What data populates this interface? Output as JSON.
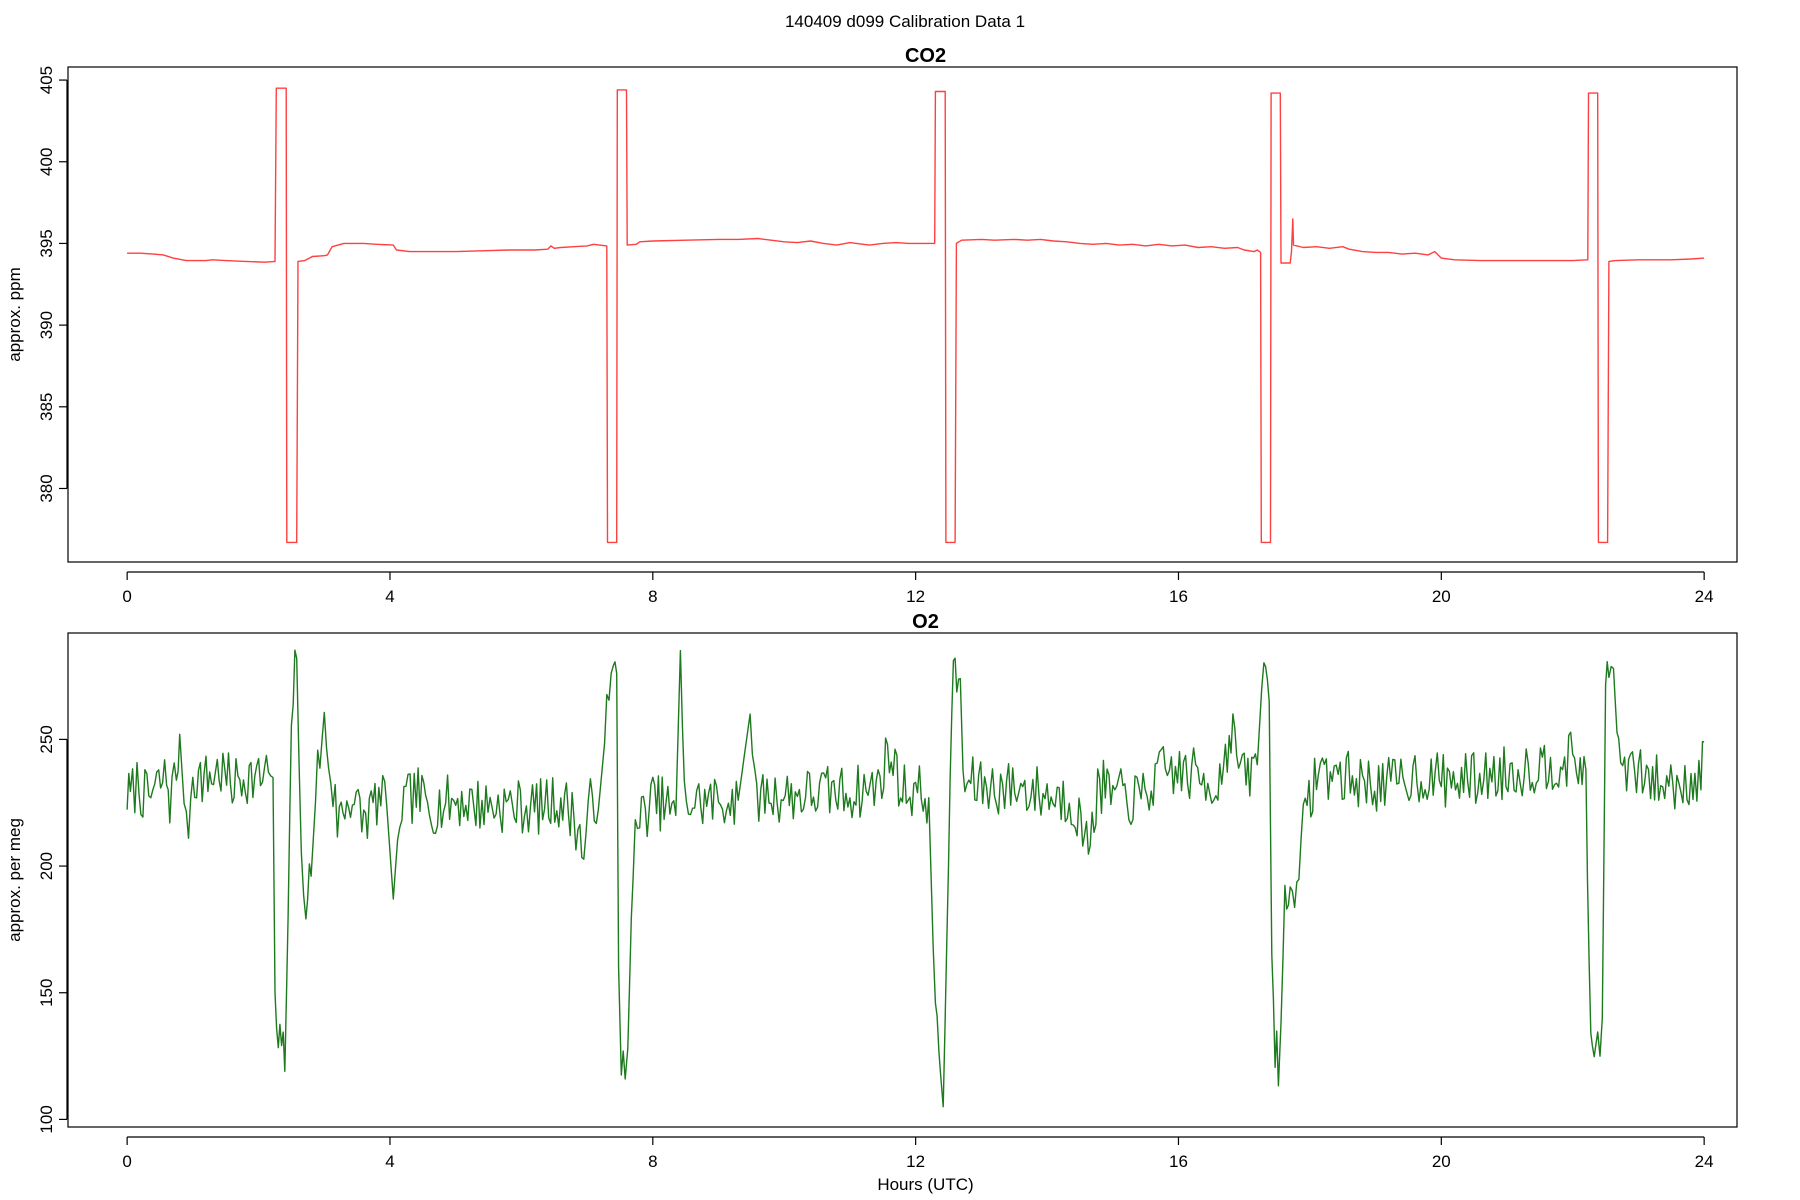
{
  "figure_title": "140409   d099   Calibration Data 1",
  "colors": {
    "co2": "#ff4040",
    "o2": "#1e7a1e",
    "axis": "#000000"
  },
  "chart_data": [
    {
      "type": "line",
      "title": "CO2",
      "xlabel": "",
      "ylabel": "approx. ppm",
      "xlim": [
        -0.9,
        24.5
      ],
      "ylim": [
        375.5,
        405.8
      ],
      "xticks": [
        0,
        4,
        8,
        12,
        16,
        20,
        24
      ],
      "yticks": [
        380,
        385,
        390,
        395,
        400,
        405
      ],
      "grid": false,
      "series": [
        {
          "color": "#ff4040",
          "step": true,
          "points": [
            [
              0.0,
              394.4
            ],
            [
              0.2,
              394.4
            ],
            [
              0.4,
              394.35
            ],
            [
              0.55,
              394.3
            ],
            [
              0.7,
              394.1
            ],
            [
              0.9,
              393.95
            ],
            [
              1.2,
              393.95
            ],
            [
              1.3,
              394.0
            ],
            [
              1.5,
              393.95
            ],
            [
              1.8,
              393.9
            ],
            [
              2.1,
              393.85
            ],
            [
              2.25,
              393.9
            ],
            [
              2.27,
              404.5
            ],
            [
              2.42,
              404.5
            ],
            [
              2.43,
              376.7
            ],
            [
              2.58,
              376.7
            ],
            [
              2.6,
              393.9
            ],
            [
              2.7,
              393.95
            ],
            [
              2.82,
              394.2
            ],
            [
              3.0,
              394.25
            ],
            [
              3.05,
              394.3
            ],
            [
              3.12,
              394.8
            ],
            [
              3.3,
              395.0
            ],
            [
              3.6,
              395.0
            ],
            [
              3.8,
              394.95
            ],
            [
              4.05,
              394.9
            ],
            [
              4.1,
              394.6
            ],
            [
              4.3,
              394.5
            ],
            [
              4.6,
              394.5
            ],
            [
              5.0,
              394.5
            ],
            [
              5.4,
              394.55
            ],
            [
              5.8,
              394.6
            ],
            [
              6.2,
              394.6
            ],
            [
              6.4,
              394.65
            ],
            [
              6.45,
              394.85
            ],
            [
              6.5,
              394.7
            ],
            [
              6.6,
              394.75
            ],
            [
              6.8,
              394.8
            ],
            [
              7.0,
              394.85
            ],
            [
              7.1,
              394.95
            ],
            [
              7.3,
              394.85
            ],
            [
              7.31,
              376.7
            ],
            [
              7.45,
              376.7
            ],
            [
              7.46,
              404.4
            ],
            [
              7.6,
              404.4
            ],
            [
              7.61,
              394.9
            ],
            [
              7.75,
              394.95
            ],
            [
              7.8,
              395.1
            ],
            [
              8.0,
              395.15
            ],
            [
              8.5,
              395.2
            ],
            [
              9.0,
              395.25
            ],
            [
              9.3,
              395.25
            ],
            [
              9.6,
              395.3
            ],
            [
              9.8,
              395.2
            ],
            [
              10.0,
              395.1
            ],
            [
              10.2,
              395.05
            ],
            [
              10.4,
              395.15
            ],
            [
              10.6,
              395.0
            ],
            [
              10.8,
              394.9
            ],
            [
              11.0,
              395.05
            ],
            [
              11.2,
              394.95
            ],
            [
              11.3,
              394.9
            ],
            [
              11.5,
              395.0
            ],
            [
              11.7,
              395.05
            ],
            [
              11.9,
              395.0
            ],
            [
              12.1,
              395.0
            ],
            [
              12.29,
              395.0
            ],
            [
              12.3,
              404.3
            ],
            [
              12.45,
              404.3
            ],
            [
              12.46,
              376.7
            ],
            [
              12.6,
              376.7
            ],
            [
              12.62,
              395.0
            ],
            [
              12.7,
              395.2
            ],
            [
              13.0,
              395.25
            ],
            [
              13.2,
              395.2
            ],
            [
              13.5,
              395.25
            ],
            [
              13.7,
              395.2
            ],
            [
              13.9,
              395.25
            ],
            [
              14.1,
              395.15
            ],
            [
              14.3,
              395.1
            ],
            [
              14.5,
              395.0
            ],
            [
              14.7,
              394.95
            ],
            [
              14.9,
              395.0
            ],
            [
              15.1,
              394.9
            ],
            [
              15.3,
              394.95
            ],
            [
              15.5,
              394.85
            ],
            [
              15.7,
              394.95
            ],
            [
              15.9,
              394.85
            ],
            [
              16.1,
              394.9
            ],
            [
              16.3,
              394.75
            ],
            [
              16.5,
              394.8
            ],
            [
              16.7,
              394.7
            ],
            [
              16.9,
              394.75
            ],
            [
              17.0,
              394.6
            ],
            [
              17.15,
              394.5
            ],
            [
              17.2,
              394.6
            ],
            [
              17.25,
              394.45
            ],
            [
              17.26,
              376.7
            ],
            [
              17.4,
              376.7
            ],
            [
              17.41,
              404.2
            ],
            [
              17.55,
              404.2
            ],
            [
              17.56,
              393.8
            ],
            [
              17.7,
              393.8
            ],
            [
              17.72,
              394.5
            ],
            [
              17.74,
              396.5
            ],
            [
              17.75,
              394.9
            ],
            [
              17.9,
              394.75
            ],
            [
              18.1,
              394.8
            ],
            [
              18.3,
              394.7
            ],
            [
              18.5,
              394.8
            ],
            [
              18.6,
              394.65
            ],
            [
              18.8,
              394.5
            ],
            [
              19.0,
              394.45
            ],
            [
              19.2,
              394.45
            ],
            [
              19.4,
              394.35
            ],
            [
              19.6,
              394.4
            ],
            [
              19.8,
              394.3
            ],
            [
              19.9,
              394.5
            ],
            [
              20.0,
              394.1
            ],
            [
              20.2,
              394.0
            ],
            [
              20.6,
              393.95
            ],
            [
              21.0,
              393.95
            ],
            [
              21.4,
              393.95
            ],
            [
              21.8,
              393.95
            ],
            [
              22.0,
              393.95
            ],
            [
              22.23,
              394.0
            ],
            [
              22.24,
              404.2
            ],
            [
              22.38,
              404.2
            ],
            [
              22.39,
              376.7
            ],
            [
              22.53,
              376.7
            ],
            [
              22.55,
              393.9
            ],
            [
              22.65,
              393.95
            ],
            [
              23.0,
              394.0
            ],
            [
              23.5,
              394.0
            ],
            [
              23.8,
              394.05
            ],
            [
              24.0,
              394.1
            ]
          ]
        }
      ]
    },
    {
      "type": "line",
      "title": "O2",
      "xlabel": "Hours (UTC)",
      "ylabel": "approx. per meg",
      "xlim": [
        -0.9,
        24.5
      ],
      "ylim": [
        97,
        292
      ],
      "xticks": [
        0,
        4,
        8,
        12,
        16,
        20,
        24
      ],
      "yticks": [
        100,
        150,
        200,
        250
      ],
      "grid": false,
      "series": [
        {
          "color": "#1e7a1e",
          "noise_seed": 7,
          "points": [
            [
              0.0,
              228
            ],
            [
              0.05,
              227
            ],
            [
              0.15,
              233
            ],
            [
              0.3,
              226
            ],
            [
              0.45,
              231
            ],
            [
              0.6,
              235
            ],
            [
              0.65,
              226
            ],
            [
              0.75,
              237
            ],
            [
              0.8,
              252
            ],
            [
              0.9,
              211
            ],
            [
              1.0,
              236
            ],
            [
              1.2,
              234
            ],
            [
              1.4,
              238
            ],
            [
              1.6,
              232
            ],
            [
              1.8,
              236
            ],
            [
              2.0,
              234
            ],
            [
              2.15,
              237
            ],
            [
              2.22,
              235
            ],
            [
              2.25,
              150
            ],
            [
              2.3,
              122
            ],
            [
              2.35,
              133
            ],
            [
              2.4,
              119
            ],
            [
              2.45,
              180
            ],
            [
              2.5,
              262
            ],
            [
              2.58,
              282
            ],
            [
              2.65,
              201
            ],
            [
              2.72,
              189
            ],
            [
              2.8,
              196
            ],
            [
              2.9,
              240
            ],
            [
              3.0,
              255
            ],
            [
              3.1,
              236
            ],
            [
              3.2,
              218
            ],
            [
              3.4,
              228
            ],
            [
              3.6,
              218
            ],
            [
              3.8,
              226
            ],
            [
              3.95,
              224
            ],
            [
              4.05,
              187
            ],
            [
              4.15,
              222
            ],
            [
              4.4,
              229
            ],
            [
              4.6,
              223
            ],
            [
              5.0,
              226
            ],
            [
              5.4,
              224
            ],
            [
              5.8,
              224
            ],
            [
              6.2,
              223
            ],
            [
              6.6,
              226
            ],
            [
              6.8,
              220
            ],
            [
              6.95,
              205
            ],
            [
              7.05,
              224
            ],
            [
              7.2,
              230
            ],
            [
              7.3,
              258
            ],
            [
              7.4,
              275
            ],
            [
              7.45,
              276
            ],
            [
              7.48,
              160
            ],
            [
              7.52,
              125
            ],
            [
              7.58,
              122
            ],
            [
              7.62,
              128
            ],
            [
              7.7,
              205
            ],
            [
              7.8,
              218
            ],
            [
              8.0,
              226
            ],
            [
              8.2,
              224
            ],
            [
              8.35,
              220
            ],
            [
              8.42,
              285
            ],
            [
              8.48,
              226
            ],
            [
              8.7,
              225
            ],
            [
              9.0,
              226
            ],
            [
              9.3,
              226
            ],
            [
              9.48,
              260
            ],
            [
              9.55,
              228
            ],
            [
              9.8,
              228
            ],
            [
              10.2,
              228
            ],
            [
              10.6,
              229
            ],
            [
              11.0,
              229
            ],
            [
              11.4,
              231
            ],
            [
              11.6,
              245
            ],
            [
              11.8,
              230
            ],
            [
              12.0,
              230
            ],
            [
              12.2,
              227
            ],
            [
              12.3,
              138
            ],
            [
              12.38,
              122
            ],
            [
              12.42,
              105
            ],
            [
              12.5,
              200
            ],
            [
              12.55,
              268
            ],
            [
              12.6,
              274
            ],
            [
              12.68,
              274
            ],
            [
              12.72,
              233
            ],
            [
              12.9,
              232
            ],
            [
              13.2,
              231
            ],
            [
              13.6,
              231
            ],
            [
              14.0,
              228
            ],
            [
              14.4,
              226
            ],
            [
              14.6,
              208
            ],
            [
              14.8,
              232
            ],
            [
              15.0,
              228
            ],
            [
              15.4,
              226
            ],
            [
              15.8,
              238
            ],
            [
              16.2,
              236
            ],
            [
              16.6,
              232
            ],
            [
              16.8,
              254
            ],
            [
              17.0,
              234
            ],
            [
              17.2,
              240
            ],
            [
              17.3,
              285
            ],
            [
              17.38,
              265
            ],
            [
              17.42,
              165
            ],
            [
              17.47,
              130
            ],
            [
              17.52,
              122
            ],
            [
              17.56,
              138
            ],
            [
              17.62,
              190
            ],
            [
              17.7,
              184
            ],
            [
              17.8,
              200
            ],
            [
              17.9,
              214
            ],
            [
              18.1,
              238
            ],
            [
              18.4,
              236
            ],
            [
              18.8,
              233
            ],
            [
              19.2,
              232
            ],
            [
              19.6,
              236
            ],
            [
              20.0,
              234
            ],
            [
              20.4,
              234
            ],
            [
              20.8,
              236
            ],
            [
              21.2,
              238
            ],
            [
              21.6,
              240
            ],
            [
              22.0,
              242
            ],
            [
              22.2,
              238
            ],
            [
              22.25,
              150
            ],
            [
              22.3,
              129
            ],
            [
              22.38,
              130
            ],
            [
              22.45,
              140
            ],
            [
              22.5,
              265
            ],
            [
              22.55,
              285
            ],
            [
              22.62,
              278
            ],
            [
              22.7,
              240
            ],
            [
              23.0,
              236
            ],
            [
              23.4,
              232
            ],
            [
              23.8,
              234
            ],
            [
              23.95,
              236
            ],
            [
              24.0,
              249
            ]
          ]
        }
      ]
    }
  ]
}
